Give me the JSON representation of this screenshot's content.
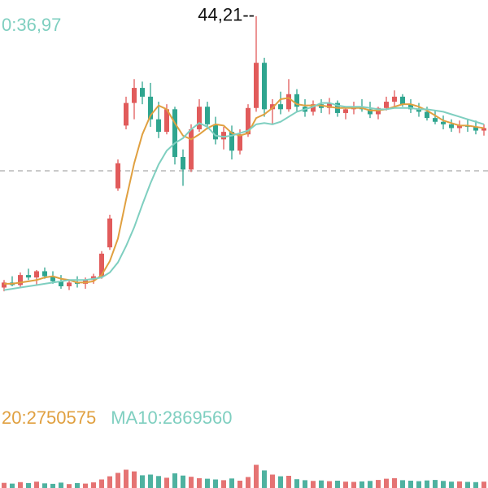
{
  "chart_data": {
    "type": "candlestick",
    "price_label": {
      "text": "0:36,97",
      "color": "#7fcfc0"
    },
    "high_label": "44,21--",
    "ylim": [
      17,
      45.5
    ],
    "reference_line": 31.9,
    "up_color": "#e15b5b",
    "down_color": "#2fa58f",
    "candles": [
      [
        22.6,
        23.2,
        22.3,
        23.0
      ],
      [
        23.0,
        23.5,
        22.7,
        22.8
      ],
      [
        22.8,
        23.8,
        22.6,
        23.6
      ],
      [
        23.6,
        24.1,
        23.2,
        23.4
      ],
      [
        23.4,
        24.0,
        22.8,
        23.9
      ],
      [
        23.9,
        24.2,
        23.3,
        23.5
      ],
      [
        23.5,
        23.9,
        22.9,
        23.1
      ],
      [
        23.1,
        23.6,
        22.5,
        22.7
      ],
      [
        22.7,
        23.2,
        22.4,
        23.0
      ],
      [
        23.0,
        23.5,
        22.6,
        22.9
      ],
      [
        22.9,
        23.4,
        22.5,
        23.2
      ],
      [
        23.2,
        23.7,
        22.9,
        23.5
      ],
      [
        23.5,
        25.5,
        23.3,
        25.3
      ],
      [
        25.8,
        28.4,
        25.6,
        28.1
      ],
      [
        30.5,
        32.8,
        30.3,
        32.5
      ],
      [
        35.5,
        37.8,
        35.2,
        37.3
      ],
      [
        37.3,
        39.2,
        36.0,
        38.5
      ],
      [
        38.5,
        39.0,
        37.2,
        37.8
      ],
      [
        37.8,
        38.9,
        35.4,
        36.0
      ],
      [
        36.0,
        37.4,
        34.5,
        35.0
      ],
      [
        35.0,
        37.2,
        34.8,
        36.8
      ],
      [
        36.8,
        37.0,
        32.4,
        33.0
      ],
      [
        33.0,
        33.6,
        30.7,
        32.0
      ],
      [
        32.0,
        35.6,
        31.8,
        35.2
      ],
      [
        35.2,
        37.6,
        35.0,
        37.0
      ],
      [
        37.0,
        37.4,
        35.2,
        35.6
      ],
      [
        35.6,
        36.2,
        34.0,
        34.4
      ],
      [
        34.4,
        35.4,
        33.6,
        35.0
      ],
      [
        35.0,
        35.5,
        32.8,
        33.5
      ],
      [
        33.5,
        35.2,
        33.2,
        34.8
      ],
      [
        34.8,
        37.2,
        34.6,
        36.9
      ],
      [
        36.9,
        44.21,
        36.6,
        40.5
      ],
      [
        40.5,
        40.9,
        36.2,
        36.8
      ],
      [
        36.8,
        37.6,
        35.6,
        37.2
      ],
      [
        37.2,
        38.2,
        36.4,
        36.8
      ],
      [
        36.8,
        39.2,
        36.6,
        38.0
      ],
      [
        38.0,
        38.4,
        36.6,
        37.0
      ],
      [
        37.0,
        37.6,
        36.2,
        36.6
      ],
      [
        36.6,
        37.5,
        36.3,
        37.2
      ],
      [
        37.2,
        37.6,
        36.5,
        36.9
      ],
      [
        36.9,
        37.7,
        36.4,
        37.3
      ],
      [
        37.3,
        37.5,
        36.2,
        36.5
      ],
      [
        36.5,
        37.0,
        36.0,
        36.8
      ],
      [
        36.8,
        37.4,
        36.4,
        37.0
      ],
      [
        37.0,
        37.6,
        36.6,
        36.8
      ],
      [
        36.8,
        37.4,
        36.1,
        36.4
      ],
      [
        36.4,
        37.0,
        36.0,
        36.9
      ],
      [
        36.9,
        37.8,
        36.7,
        37.4
      ],
      [
        37.4,
        38.3,
        37.0,
        37.8
      ],
      [
        37.8,
        38.0,
        37.0,
        37.2
      ],
      [
        37.2,
        37.6,
        36.5,
        36.8
      ],
      [
        36.8,
        37.3,
        36.2,
        36.6
      ],
      [
        36.6,
        37.0,
        35.9,
        36.1
      ],
      [
        36.1,
        36.7,
        35.6,
        35.8
      ],
      [
        35.8,
        36.3,
        35.2,
        35.6
      ],
      [
        35.6,
        36.0,
        35.0,
        35.3
      ],
      [
        35.3,
        35.9,
        34.9,
        35.5
      ],
      [
        35.5,
        36.0,
        35.0,
        35.4
      ],
      [
        35.4,
        35.9,
        34.8,
        35.1
      ],
      [
        35.1,
        35.6,
        34.7,
        35.3
      ]
    ],
    "ma": [
      {
        "color": "#e0a040",
        "values": [
          22.9,
          22.9,
          23.0,
          23.1,
          23.2,
          23.4,
          23.5,
          23.3,
          23.2,
          23.0,
          23.0,
          23.1,
          23.6,
          24.7,
          26.5,
          29.6,
          32.5,
          34.8,
          36.3,
          37.1,
          36.8,
          35.7,
          34.7,
          34.4,
          34.8,
          35.3,
          35.6,
          35.5,
          34.9,
          34.7,
          34.9,
          36.1,
          36.4,
          36.9,
          37.6,
          37.7,
          37.2,
          37.1,
          37.1,
          37.1,
          37.0,
          36.9,
          36.9,
          36.9,
          36.9,
          36.7,
          36.7,
          36.8,
          37.0,
          37.2,
          37.2,
          37.0,
          36.7,
          36.3,
          35.9,
          35.7,
          35.5,
          35.5,
          35.4,
          35.3
        ]
      },
      {
        "color": "#7fcfc0",
        "values": [
          22.4,
          22.5,
          22.6,
          22.7,
          22.8,
          22.9,
          23.0,
          23.1,
          23.2,
          23.2,
          23.2,
          23.3,
          23.4,
          23.8,
          24.6,
          25.9,
          27.4,
          29.2,
          30.9,
          32.4,
          33.5,
          34.1,
          34.5,
          35.2,
          35.7,
          35.4,
          34.7,
          34.6,
          34.7,
          34.9,
          35.1,
          35.6,
          35.7,
          35.6,
          35.8,
          36.2,
          36.6,
          36.8,
          37.0,
          37.3,
          37.3,
          37.1,
          37.0,
          37.0,
          37.0,
          36.9,
          36.8,
          36.8,
          36.9,
          36.9,
          36.9,
          36.8,
          36.8,
          36.7,
          36.6,
          36.4,
          36.2,
          36.0,
          35.8,
          35.6
        ]
      }
    ],
    "volume_labels": [
      {
        "text": "20:2750575",
        "color": "#e0a040"
      },
      {
        "text": "MA10:2869560",
        "color": "#7fcfc0"
      }
    ],
    "vlim": [
      0,
      20000000
    ],
    "volume": [
      2100000,
      1800000,
      2400000,
      2000000,
      2600000,
      1900000,
      1700000,
      2200000,
      1600000,
      2000000,
      1800000,
      2300000,
      3500000,
      4800000,
      6200000,
      7500000,
      6800000,
      5200000,
      5500000,
      4900000,
      4200000,
      6000000,
      5100000,
      4600000,
      4000000,
      3800000,
      3500000,
      3200000,
      3900000,
      3000000,
      4500000,
      9500000,
      7200000,
      5500000,
      4800000,
      5000000,
      3600000,
      3200000,
      2900000,
      3100000,
      2800000,
      3000000,
      2600000,
      2500000,
      2700000,
      2900000,
      3300000,
      3800000,
      4000000,
      3200000,
      3000000,
      2800000,
      3100000,
      3300000,
      2900000,
      2600000,
      2700000,
      2500000,
      2400000,
      2600000
    ]
  }
}
